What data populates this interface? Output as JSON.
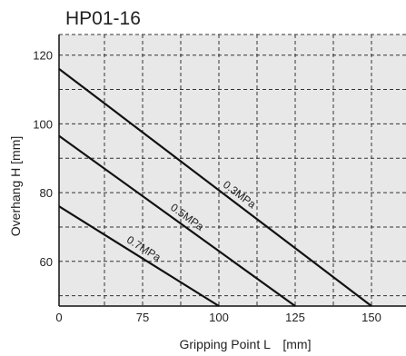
{
  "chart_data": {
    "type": "line",
    "title": "HP01-16",
    "xlabel": "Gripping Point L　[mm]",
    "ylabel": "Overhang H [mm]",
    "xlim": [
      0,
      162
    ],
    "ylim": [
      47,
      126
    ],
    "xticks": [
      0,
      75,
      100,
      125,
      150
    ],
    "yticks": [
      60,
      80,
      100,
      120
    ],
    "grid": true,
    "series": [
      {
        "name": "0.3MPa",
        "x": [
          0,
          150
        ],
        "y": [
          116,
          47
        ]
      },
      {
        "name": "0.5MPa",
        "x": [
          0,
          125
        ],
        "y": [
          96.5,
          47
        ]
      },
      {
        "name": "0.7MPa",
        "x": [
          0,
          100
        ],
        "y": [
          76,
          47
        ]
      }
    ],
    "plot_background": "#e8e8e8",
    "line_color": "#111111",
    "grid_color": "#333333"
  }
}
